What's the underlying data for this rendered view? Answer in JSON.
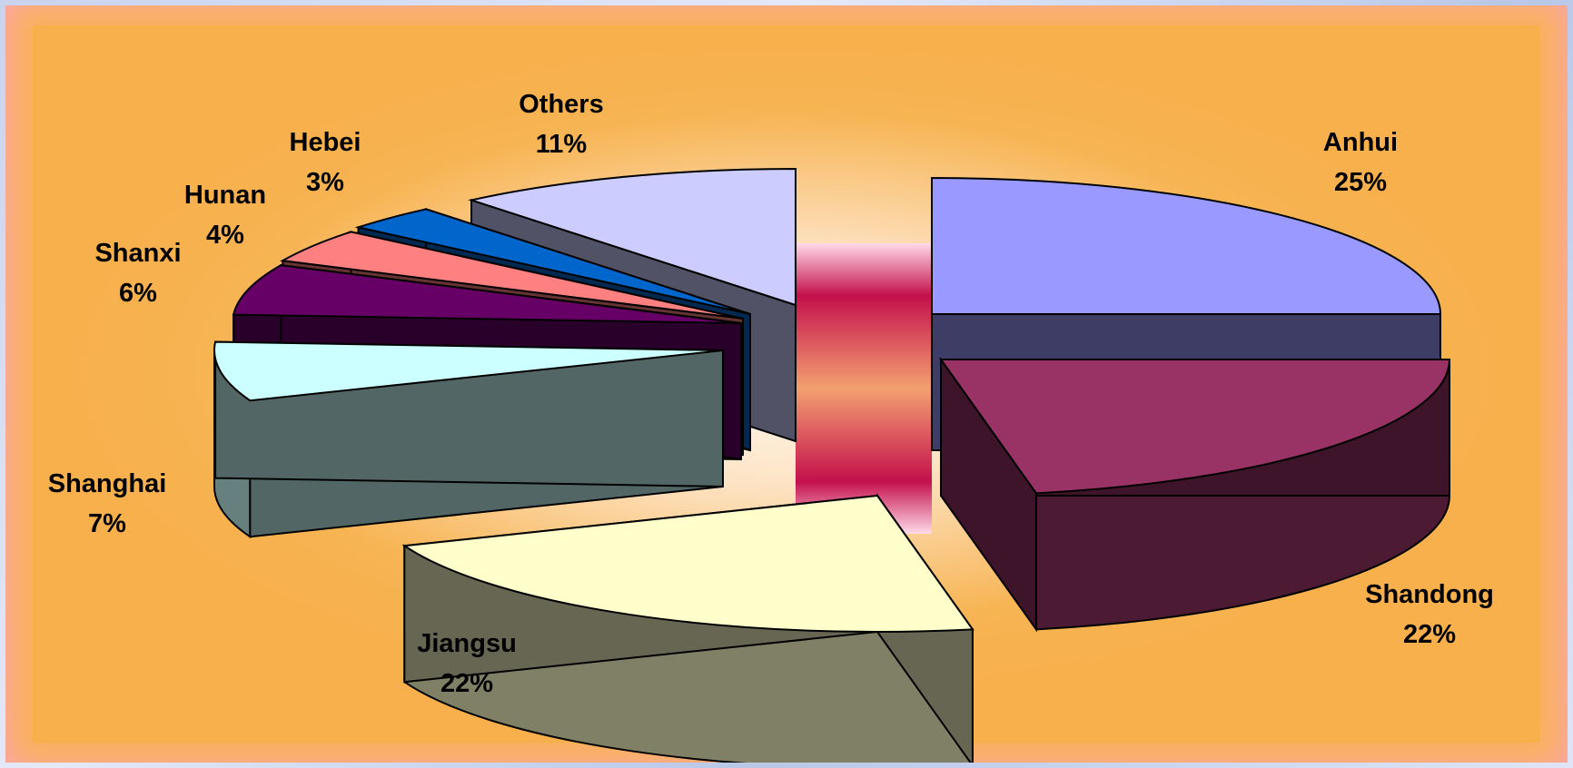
{
  "chart_data": {
    "type": "pie",
    "title": "",
    "style": "3d-exploded",
    "slices": [
      {
        "label": "Anhui",
        "pct_label": "25%",
        "value": 25,
        "color": "#9999ff"
      },
      {
        "label": "Shandong",
        "pct_label": "22%",
        "value": 22,
        "color": "#993366"
      },
      {
        "label": "Jiangsu",
        "pct_label": "22%",
        "value": 22,
        "color": "#ffffcc"
      },
      {
        "label": "Shanghai",
        "pct_label": "7%",
        "value": 7,
        "color": "#ccffff"
      },
      {
        "label": "Shanxi",
        "pct_label": "6%",
        "value": 6,
        "color": "#660066"
      },
      {
        "label": "Hunan",
        "pct_label": "4%",
        "value": 4,
        "color": "#ff8080"
      },
      {
        "label": "Hebei",
        "pct_label": "3%",
        "value": 3,
        "color": "#0066cc"
      },
      {
        "label": "Others",
        "pct_label": "11%",
        "value": 11,
        "color": "#ccccff"
      }
    ],
    "background_colors": {
      "outer": "#fca2bf",
      "inner": "#f7b04c"
    }
  }
}
